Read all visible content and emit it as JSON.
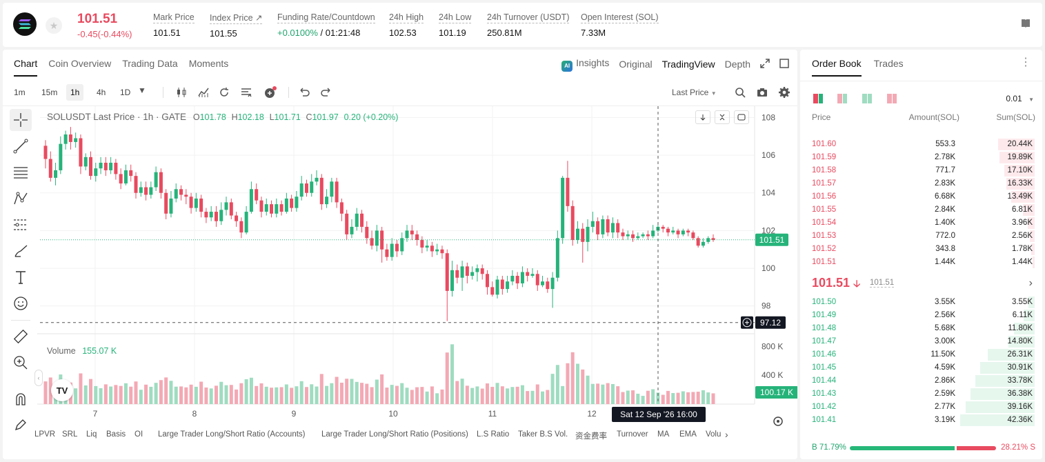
{
  "header": {
    "price": "101.51",
    "change": "-0.45(-0.44%)",
    "stats": [
      {
        "label": "Mark Price",
        "value": "101.51"
      },
      {
        "label": "Index Price ↗",
        "value": "101.55"
      },
      {
        "label": "Funding Rate/Countdown",
        "value_green": "+0.0100%",
        "value": " / 01:21:48"
      },
      {
        "label": "24h High",
        "value": "102.53"
      },
      {
        "label": "24h Low",
        "value": "101.19"
      },
      {
        "label": "24h Turnover (USDT)",
        "value": "250.81M"
      },
      {
        "label": "Open Interest (SOL)",
        "value": "7.33M"
      }
    ]
  },
  "chart_tabs": [
    "Chart",
    "Coin Overview",
    "Trading Data",
    "Moments"
  ],
  "view_tabs": {
    "insights": "Insights",
    "original": "Original",
    "tradingview": "TradingView",
    "depth": "Depth"
  },
  "toolbar": {
    "timeframes": [
      "1m",
      "15m",
      "1h",
      "4h",
      "1D"
    ],
    "active_timeframe": "1h",
    "price_type": "Last Price"
  },
  "legend": {
    "symbol": "SOLUSDT Last Price · 1h · GATE",
    "o_label": "O",
    "o": "101.78",
    "h_label": "H",
    "h": "102.18",
    "l_label": "L",
    "l": "101.71",
    "c_label": "C",
    "c": "101.97",
    "chg": "0.20 (+0.20%)",
    "volume_label": "Volume",
    "volume": "155.07 K"
  },
  "crosshair": {
    "price": "97.12",
    "time": "Sat 12 Sep '26   16:00"
  },
  "last_price_tag": "101.51",
  "volume_tag": "100.17 K",
  "indicators": [
    "LPVR",
    "SRL",
    "Liq",
    "Basis",
    "OI",
    "Large Trader Long/Short Ratio (Accounts)",
    "Large Trader Long/Short Ratio (Positions)",
    "L.S Ratio",
    "Taker B.S Vol.",
    "资金费率",
    "Turnover",
    "MA",
    "EMA",
    "Volu"
  ],
  "chart_data": {
    "type": "candlestick",
    "title": "SOLUSDT Last Price · 1h · GATE",
    "y_ticks": [
      108.0,
      106.0,
      104.0,
      102.0,
      100.0,
      98.0
    ],
    "ylim": [
      96.6,
      108.6
    ],
    "x_ticks": [
      "7",
      "8",
      "9",
      "10",
      "11",
      "12"
    ],
    "volume_ticks": [
      "800 K",
      "400 K"
    ],
    "last_price": 101.51,
    "candles": [
      [
        106.5,
        105.8,
        106.8,
        105.3
      ],
      [
        105.8,
        104.8,
        106.2,
        104.6
      ],
      [
        104.8,
        105.2,
        105.6,
        104.4
      ],
      [
        105.2,
        106.6,
        107.0,
        105.0
      ],
      [
        106.6,
        107.1,
        107.3,
        106.3
      ],
      [
        107.1,
        106.7,
        107.5,
        106.3
      ],
      [
        106.7,
        106.9,
        107.2,
        106.4
      ],
      [
        106.9,
        105.4,
        107.1,
        105.0
      ],
      [
        105.4,
        105.9,
        106.1,
        105.2
      ],
      [
        105.9,
        104.9,
        106.2,
        104.7
      ],
      [
        104.9,
        105.3,
        105.6,
        104.6
      ],
      [
        105.3,
        105.6,
        105.9,
        105.0
      ],
      [
        105.6,
        105.2,
        105.9,
        104.9
      ],
      [
        105.2,
        105.6,
        105.9,
        105.0
      ],
      [
        105.6,
        105.0,
        105.8,
        104.7
      ],
      [
        105.0,
        104.5,
        105.3,
        104.2
      ],
      [
        104.5,
        105.2,
        105.5,
        104.4
      ],
      [
        105.2,
        104.9,
        105.5,
        104.6
      ],
      [
        104.9,
        104.0,
        105.1,
        103.7
      ],
      [
        104.0,
        104.3,
        104.6,
        103.8
      ],
      [
        104.3,
        103.9,
        104.6,
        103.6
      ],
      [
        103.9,
        104.3,
        104.6,
        103.7
      ],
      [
        104.3,
        105.1,
        105.4,
        104.1
      ],
      [
        105.1,
        104.0,
        105.3,
        103.7
      ],
      [
        104.0,
        102.9,
        104.2,
        102.6
      ],
      [
        102.9,
        103.7,
        104.1,
        102.7
      ],
      [
        103.7,
        104.2,
        104.5,
        103.5
      ],
      [
        104.2,
        103.9,
        104.4,
        103.6
      ],
      [
        103.9,
        103.8,
        104.2,
        103.4
      ],
      [
        103.8,
        103.2,
        104.0,
        102.9
      ],
      [
        103.2,
        103.7,
        104.0,
        103.0
      ],
      [
        103.7,
        103.0,
        103.9,
        102.7
      ],
      [
        103.0,
        102.7,
        103.2,
        102.4
      ],
      [
        102.7,
        103.0,
        103.3,
        102.5
      ],
      [
        103.0,
        102.5,
        103.3,
        102.2
      ],
      [
        102.5,
        103.1,
        103.5,
        102.3
      ],
      [
        103.1,
        103.5,
        103.8,
        102.8
      ],
      [
        103.5,
        102.8,
        103.7,
        102.6
      ],
      [
        102.8,
        102.5,
        103.0,
        102.2
      ],
      [
        102.5,
        101.9,
        102.7,
        101.6
      ],
      [
        101.9,
        103.0,
        103.3,
        101.8
      ],
      [
        103.0,
        104.2,
        104.6,
        102.9
      ],
      [
        104.2,
        103.6,
        104.5,
        103.4
      ],
      [
        103.6,
        103.0,
        103.8,
        102.7
      ],
      [
        103.0,
        103.4,
        103.7,
        102.8
      ],
      [
        103.4,
        102.9,
        103.6,
        102.7
      ],
      [
        102.9,
        103.4,
        103.7,
        102.7
      ],
      [
        103.4,
        103.0,
        103.6,
        102.8
      ],
      [
        103.0,
        103.7,
        104.0,
        102.9
      ],
      [
        103.7,
        103.2,
        103.9,
        103.0
      ],
      [
        103.2,
        103.8,
        104.1,
        103.0
      ],
      [
        103.8,
        104.5,
        104.9,
        103.6
      ],
      [
        104.5,
        104.0,
        104.7,
        103.8
      ],
      [
        104.0,
        104.6,
        105.0,
        103.8
      ],
      [
        104.6,
        104.8,
        105.2,
        104.4
      ],
      [
        104.8,
        103.4,
        105.0,
        103.1
      ],
      [
        103.4,
        103.8,
        104.2,
        103.2
      ],
      [
        103.8,
        104.6,
        104.8,
        103.5
      ],
      [
        104.6,
        103.5,
        104.8,
        103.2
      ],
      [
        103.5,
        102.9,
        103.7,
        102.5
      ],
      [
        102.9,
        101.8,
        103.1,
        101.5
      ],
      [
        101.8,
        102.2,
        102.6,
        101.6
      ],
      [
        102.2,
        102.9,
        103.2,
        102.0
      ],
      [
        102.9,
        102.2,
        103.1,
        101.9
      ],
      [
        102.2,
        101.6,
        102.5,
        101.3
      ],
      [
        101.6,
        101.2,
        102.0,
        101.0
      ],
      [
        101.2,
        102.0,
        102.3,
        100.9
      ],
      [
        102.0,
        101.0,
        102.2,
        100.3
      ],
      [
        101.0,
        100.6,
        101.3,
        100.4
      ],
      [
        100.6,
        101.3,
        101.6,
        100.4
      ],
      [
        101.3,
        100.9,
        101.5,
        100.6
      ],
      [
        100.9,
        101.6,
        101.9,
        100.7
      ],
      [
        101.6,
        102.0,
        102.3,
        101.4
      ],
      [
        102.0,
        101.8,
        102.3,
        101.5
      ],
      [
        101.8,
        101.5,
        102.0,
        101.2
      ],
      [
        101.5,
        101.1,
        101.7,
        100.8
      ],
      [
        101.1,
        101.2,
        101.5,
        100.9
      ],
      [
        101.2,
        100.9,
        101.4,
        100.6
      ],
      [
        100.9,
        101.0,
        101.3,
        100.7
      ],
      [
        101.0,
        100.8,
        101.2,
        100.5
      ],
      [
        100.8,
        98.8,
        101.0,
        97.2
      ],
      [
        98.8,
        99.9,
        100.4,
        98.5
      ],
      [
        99.9,
        99.5,
        100.2,
        99.2
      ],
      [
        99.5,
        100.1,
        100.4,
        98.8
      ],
      [
        100.1,
        99.6,
        100.3,
        99.2
      ],
      [
        99.6,
        99.8,
        100.1,
        99.4
      ],
      [
        99.8,
        100.0,
        100.2,
        99.3
      ],
      [
        100.0,
        99.7,
        100.2,
        99.4
      ],
      [
        99.7,
        99.0,
        99.9,
        98.6
      ],
      [
        99.0,
        98.6,
        99.3,
        98.5
      ],
      [
        98.6,
        99.4,
        99.6,
        98.4
      ],
      [
        99.4,
        98.9,
        99.6,
        98.6
      ],
      [
        98.9,
        99.3,
        99.6,
        98.7
      ],
      [
        99.3,
        99.6,
        99.9,
        99.1
      ],
      [
        99.6,
        99.2,
        99.8,
        98.9
      ],
      [
        99.2,
        99.8,
        100.1,
        99.0
      ],
      [
        99.8,
        99.6,
        100.0,
        99.3
      ],
      [
        99.6,
        99.7,
        100.0,
        99.5
      ],
      [
        99.7,
        99.1,
        99.9,
        98.8
      ],
      [
        99.1,
        99.3,
        99.6,
        99.0
      ],
      [
        99.3,
        98.9,
        99.5,
        98.7
      ],
      [
        98.9,
        99.5,
        99.8,
        97.9
      ],
      [
        99.5,
        101.6,
        102.0,
        99.3
      ],
      [
        101.6,
        104.8,
        104.9,
        101.3
      ],
      [
        104.8,
        103.3,
        105.7,
        103.0
      ],
      [
        103.3,
        101.5,
        103.6,
        101.2
      ],
      [
        101.5,
        102.1,
        102.5,
        101.3
      ],
      [
        102.1,
        101.4,
        102.4,
        100.3
      ],
      [
        101.4,
        102.2,
        102.6,
        100.9
      ],
      [
        102.2,
        102.5,
        103.0,
        101.9
      ],
      [
        102.5,
        101.8,
        102.7,
        101.5
      ],
      [
        101.8,
        102.6,
        102.8,
        101.6
      ],
      [
        102.6,
        101.9,
        102.8,
        101.7
      ],
      [
        101.9,
        102.4,
        102.7,
        101.6
      ],
      [
        102.4,
        101.9,
        102.6,
        101.6
      ],
      [
        101.9,
        101.7,
        102.1,
        101.5
      ],
      [
        101.7,
        101.8,
        102.0,
        101.5
      ],
      [
        101.8,
        101.6,
        102.0,
        101.4
      ],
      [
        101.6,
        101.7,
        101.9,
        101.5
      ],
      [
        101.7,
        101.8,
        101.9,
        101.6
      ],
      [
        101.8,
        101.7,
        102.0,
        101.5
      ],
      [
        101.7,
        102.0,
        102.3,
        101.6
      ],
      [
        102.0,
        102.2,
        102.4,
        101.9
      ],
      [
        102.2,
        102.1,
        102.3,
        101.9
      ],
      [
        102.1,
        101.9,
        102.2,
        101.7
      ],
      [
        101.9,
        102.0,
        102.2,
        101.8
      ],
      [
        102.0,
        101.8,
        102.1,
        101.6
      ],
      [
        101.8,
        102.0,
        102.1,
        101.7
      ],
      [
        102.0,
        101.9,
        102.1,
        101.7
      ],
      [
        101.9,
        101.6,
        102.0,
        101.5
      ],
      [
        101.6,
        101.2,
        101.7,
        101.1
      ],
      [
        101.2,
        101.4,
        101.6,
        101.1
      ],
      [
        101.4,
        101.6,
        101.7,
        101.3
      ],
      [
        101.6,
        101.5,
        101.8,
        101.4
      ]
    ]
  },
  "orderbook": {
    "tabs": [
      "Order Book",
      "Trades"
    ],
    "precision": "0.01",
    "headers": {
      "price": "Price",
      "amount": "Amount(SOL)",
      "sum": "Sum(SOL)"
    },
    "asks": [
      {
        "price": "101.60",
        "amount": "553.3",
        "sum": "20.44K",
        "depth": 0.46
      },
      {
        "price": "101.59",
        "amount": "2.78K",
        "sum": "19.89K",
        "depth": 0.44
      },
      {
        "price": "101.58",
        "amount": "771.7",
        "sum": "17.10K",
        "depth": 0.38
      },
      {
        "price": "101.57",
        "amount": "2.83K",
        "sum": "16.33K",
        "depth": 0.36
      },
      {
        "price": "101.56",
        "amount": "6.68K",
        "sum": "13.49K",
        "depth": 0.3
      },
      {
        "price": "101.55",
        "amount": "2.84K",
        "sum": "6.81K",
        "depth": 0.15
      },
      {
        "price": "101.54",
        "amount": "1.40K",
        "sum": "3.96K",
        "depth": 0.09
      },
      {
        "price": "101.53",
        "amount": "772.0",
        "sum": "2.56K",
        "depth": 0.06
      },
      {
        "price": "101.52",
        "amount": "343.8",
        "sum": "1.78K",
        "depth": 0.04
      },
      {
        "price": "101.51",
        "amount": "1.44K",
        "sum": "1.44K",
        "depth": 0.03
      }
    ],
    "mid_price": "101.51",
    "mid_mark": "101.51",
    "bids": [
      {
        "price": "101.50",
        "amount": "3.55K",
        "sum": "3.55K",
        "depth": 0.08
      },
      {
        "price": "101.49",
        "amount": "2.56K",
        "sum": "6.11K",
        "depth": 0.14
      },
      {
        "price": "101.48",
        "amount": "5.68K",
        "sum": "11.80K",
        "depth": 0.26
      },
      {
        "price": "101.47",
        "amount": "3.00K",
        "sum": "14.80K",
        "depth": 0.33
      },
      {
        "price": "101.46",
        "amount": "11.50K",
        "sum": "26.31K",
        "depth": 0.59
      },
      {
        "price": "101.45",
        "amount": "4.59K",
        "sum": "30.91K",
        "depth": 0.69
      },
      {
        "price": "101.44",
        "amount": "2.86K",
        "sum": "33.78K",
        "depth": 0.75
      },
      {
        "price": "101.43",
        "amount": "2.59K",
        "sum": "36.38K",
        "depth": 0.81
      },
      {
        "price": "101.42",
        "amount": "2.77K",
        "sum": "39.16K",
        "depth": 0.87
      },
      {
        "price": "101.41",
        "amount": "3.19K",
        "sum": "42.36K",
        "depth": 0.94
      }
    ],
    "buy_ratio": "B 71.79%",
    "sell_ratio": "28.21% S",
    "buy_fraction": 0.7179
  },
  "colors": {
    "up": "#26b37a",
    "down": "#e84a5f",
    "up_light": "#e6f7ee",
    "down_light": "#fde9ec",
    "vol_up": "#9fdcc0",
    "vol_down": "#f3a9b4"
  }
}
